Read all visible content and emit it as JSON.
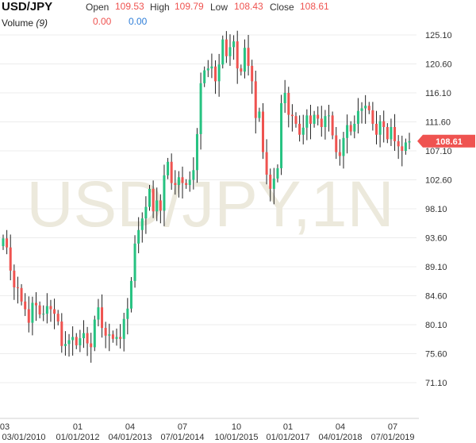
{
  "header": {
    "symbol": "USD/JPY",
    "open_label": "Open",
    "open_value": "109.53",
    "high_label": "High",
    "high_value": "109.79",
    "low_label": "Low",
    "low_value": "108.43",
    "close_label": "Close",
    "close_value": "108.61",
    "volume_label": "Volume",
    "volume_period": "(9)",
    "volume_value_1": "0.00",
    "volume_value_2": "0.00"
  },
  "watermark": "USD/JPY,1N",
  "colors": {
    "up": "#26c281",
    "down": "#ef5350",
    "accent_blue": "#2f7ed8"
  },
  "chart_data": {
    "type": "candlestick",
    "last_price_label": "108.61",
    "y_ticks": [
      "125.10",
      "120.60",
      "116.10",
      "111.60",
      "107.10",
      "102.60",
      "98.10",
      "93.60",
      "89.10",
      "84.60",
      "80.10",
      "75.60",
      "71.10"
    ],
    "x_ticks_top": [
      "03",
      "01",
      "04",
      "07",
      "10",
      "01",
      "04",
      "07"
    ],
    "x_ticks_bottom": [
      "03/01/2010",
      "01/01/2012",
      "04/01/2013",
      "07/01/2014",
      "10/01/2015",
      "01/01/2017",
      "04/01/2018",
      "07/01/2019"
    ],
    "ylim": [
      67,
      130
    ],
    "grid": "horizontal",
    "candles_close": [
      93.5,
      92.1,
      88.5,
      85.9,
      85.8,
      83.7,
      82.5,
      80.4,
      83.5,
      83.1,
      81.7,
      81.8,
      83.0,
      82.5,
      81.8,
      80.6,
      76.8,
      77.1,
      77.7,
      78.2,
      76.9,
      78.0,
      78.8,
      77.2,
      76.6,
      80.9,
      82.8,
      79.6,
      78.4,
      78.6,
      77.9,
      78.2,
      77.9,
      81.0,
      82.6,
      86.9,
      92.7,
      94.8,
      96.6,
      98.4,
      101.2,
      97.7,
      99.4,
      97.8,
      103.3,
      105.4,
      102.1,
      101.8,
      103.0,
      102.1,
      101.8,
      102.6,
      104.1,
      109.7,
      117.6,
      119.6,
      119.9,
      120.2,
      117.9,
      120.5,
      124.4,
      121.8,
      123.2,
      124.1,
      119.9,
      119.4,
      123.1,
      120.3,
      117.9,
      112.2,
      113.2,
      106.9,
      103.4,
      101.2,
      102.8,
      104.4,
      114.5,
      116.1,
      112.7,
      112.5,
      111.3,
      109.6,
      110.7,
      112.6,
      111.3,
      112.7,
      112.1,
      110.8,
      112.5,
      112.6,
      109.5,
      106.9,
      106.3,
      109.1,
      111.1,
      110.1,
      111.3,
      113.3,
      113.7,
      114.1,
      113.4,
      111.3,
      109.6,
      111.7,
      110.8,
      108.9,
      110.8,
      108.6,
      107.8,
      107.1,
      108.4,
      108.6
    ]
  }
}
